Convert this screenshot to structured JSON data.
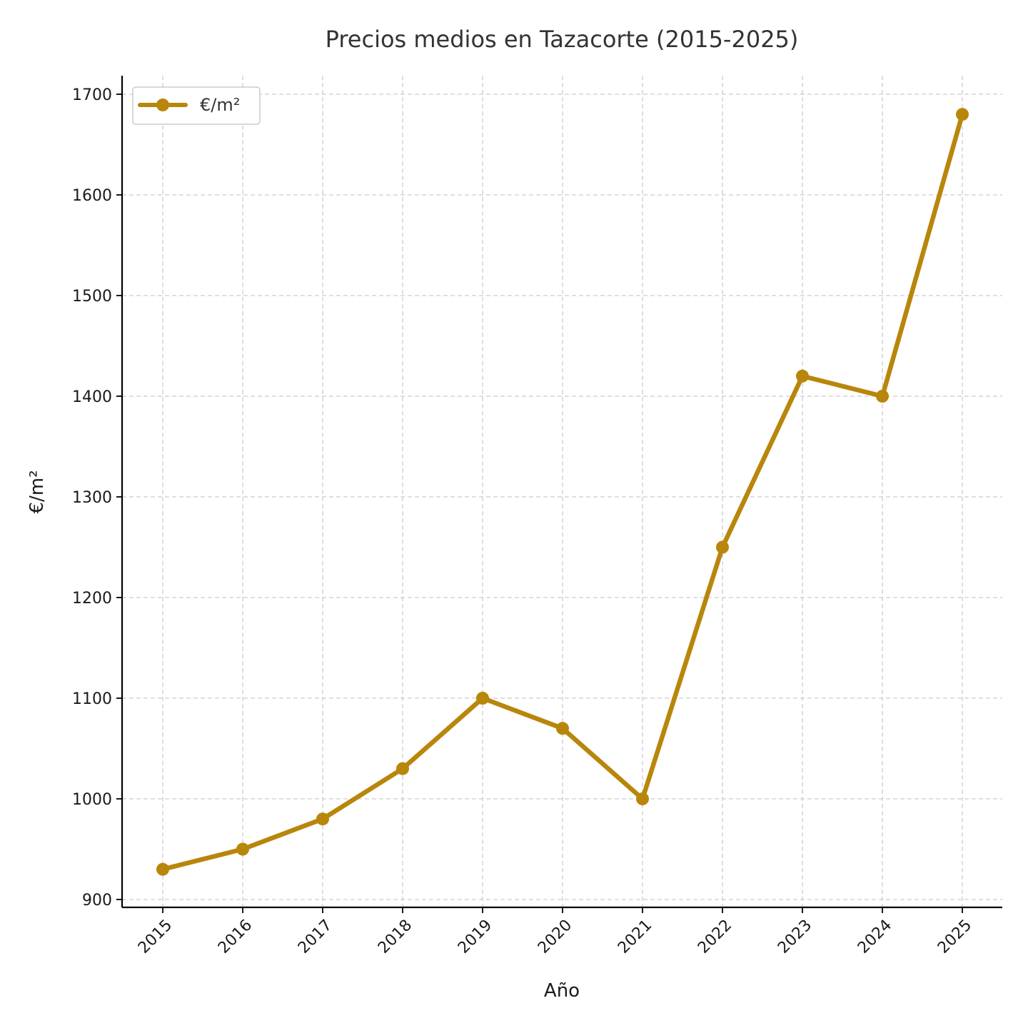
{
  "chart_data": {
    "type": "line",
    "title": "Precios medios en Tazacorte (2015-2025)",
    "xlabel": "Año",
    "ylabel": "€/m²",
    "x": [
      "2015",
      "2016",
      "2017",
      "2018",
      "2019",
      "2020",
      "2021",
      "2022",
      "2023",
      "2024",
      "2025"
    ],
    "series": [
      {
        "name": "€/m²",
        "values": [
          930,
          950,
          980,
          1030,
          1100,
          1070,
          1000,
          1250,
          1420,
          1400,
          1680
        ]
      }
    ],
    "yticks": [
      "900",
      "1000",
      "1100",
      "1200",
      "1300",
      "1400",
      "1500",
      "1600",
      "1700"
    ],
    "ylim": [
      892,
      1718
    ],
    "grid": true,
    "legend": "top-left",
    "colors": {
      "series": "#b8860b",
      "grid": "#cccccc",
      "axis": "#000000"
    }
  }
}
